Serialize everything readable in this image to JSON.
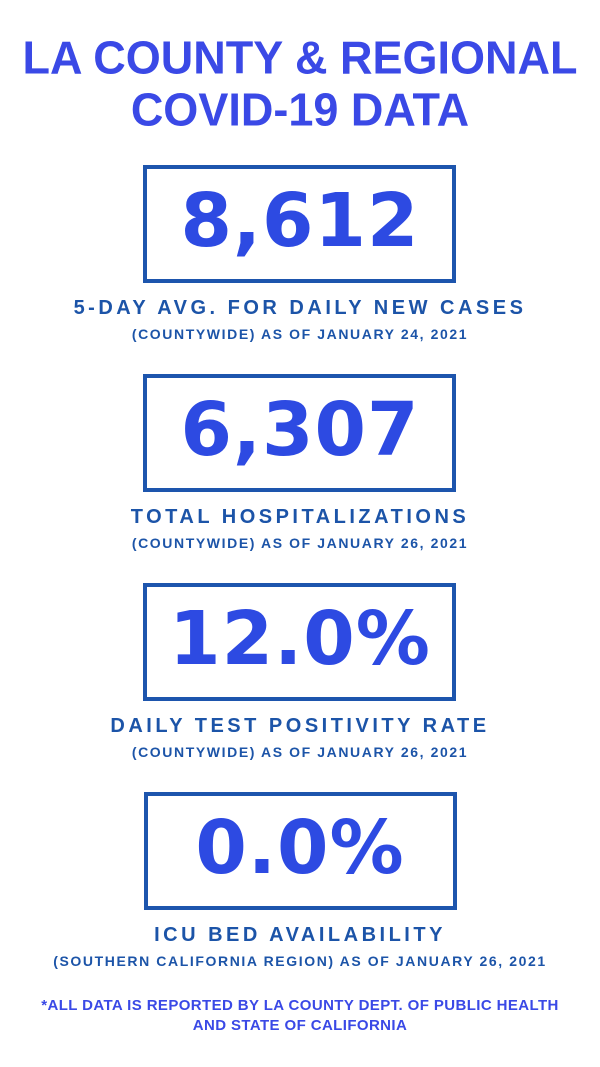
{
  "title": {
    "line1": "LA COUNTY & REGIONAL",
    "line2": "COVID-19 DATA"
  },
  "stats": [
    {
      "value": "8,612",
      "label": "5-DAY AVG. FOR DAILY NEW CASES",
      "sublabel": "(COUNTYWIDE) AS OF JANUARY 24, 2021"
    },
    {
      "value": "6,307",
      "label": "TOTAL HOSPITALIZATIONS",
      "sublabel": "(COUNTYWIDE) AS OF JANUARY 26, 2021"
    },
    {
      "value": "12.0%",
      "label": "DAILY TEST POSITIVITY RATE",
      "sublabel": "(COUNTYWIDE) AS OF JANUARY 26, 2021"
    },
    {
      "value": "0.0%",
      "label": "ICU BED AVAILABILITY",
      "sublabel": "(SOUTHERN CALIFORNIA REGION) AS OF JANUARY 26, 2021"
    }
  ],
  "footer": {
    "line1": "*ALL DATA IS REPORTED BY LA COUNTY DEPT. OF PUBLIC HEALTH",
    "line2": "AND STATE OF CALIFORNIA"
  },
  "colors": {
    "accent": "#3a49e6",
    "number": "#2d4ae2",
    "deep": "#1c54a8",
    "border": "#1d55ad",
    "bg": "#ffffff"
  }
}
